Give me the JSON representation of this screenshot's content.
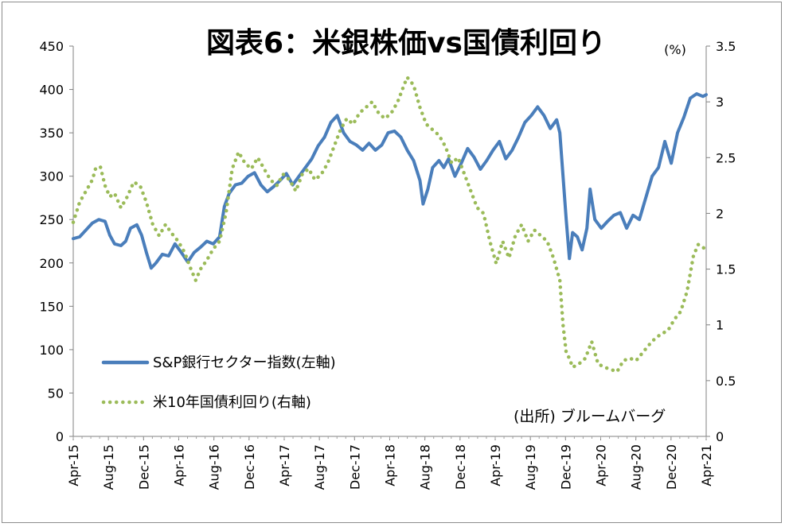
{
  "chart_data": {
    "type": "line",
    "title": "図表6：米銀株価vs国債利回り",
    "right_unit": "(%)",
    "source_note": "(出所) ブルームバーグ",
    "x_tick_labels": [
      "Apr-15",
      "Aug-15",
      "Dec-15",
      "Apr-16",
      "Aug-16",
      "Dec-16",
      "Apr-17",
      "Aug-17",
      "Dec-17",
      "Apr-18",
      "Aug-18",
      "Dec-18",
      "Apr-19",
      "Aug-19",
      "Dec-19",
      "Apr-20",
      "Aug-20",
      "Dec-20",
      "Apr-21"
    ],
    "y_left": {
      "min": 0,
      "max": 450,
      "ticks": [
        "0",
        "50",
        "100",
        "150",
        "200",
        "250",
        "300",
        "350",
        "400",
        "450"
      ]
    },
    "y_right": {
      "min": 0,
      "max": 3.5,
      "ticks": [
        "0",
        "0.5",
        "1",
        "1.5",
        "2",
        "2.5",
        "3",
        "3.5"
      ]
    },
    "series": [
      {
        "name": "S&P銀行セクター指数(左軸)",
        "axis": "left",
        "color": "#4a7ebb",
        "style": "solid",
        "points": [
          [
            0,
            228
          ],
          [
            0.4,
            230
          ],
          [
            0.8,
            238
          ],
          [
            1.2,
            246
          ],
          [
            1.6,
            250
          ],
          [
            2.0,
            248
          ],
          [
            2.3,
            232
          ],
          [
            2.6,
            222
          ],
          [
            3.0,
            220
          ],
          [
            3.3,
            225
          ],
          [
            3.6,
            240
          ],
          [
            4.0,
            244
          ],
          [
            4.3,
            232
          ],
          [
            4.6,
            212
          ],
          [
            4.9,
            194
          ],
          [
            5.2,
            200
          ],
          [
            5.6,
            210
          ],
          [
            6.0,
            208
          ],
          [
            6.4,
            222
          ],
          [
            6.8,
            212
          ],
          [
            7.2,
            201
          ],
          [
            7.6,
            212
          ],
          [
            8.0,
            218
          ],
          [
            8.4,
            225
          ],
          [
            8.8,
            222
          ],
          [
            9.2,
            230
          ],
          [
            9.5,
            265
          ],
          [
            9.8,
            280
          ],
          [
            10.2,
            290
          ],
          [
            10.6,
            292
          ],
          [
            11.0,
            300
          ],
          [
            11.4,
            304
          ],
          [
            11.8,
            290
          ],
          [
            12.2,
            282
          ],
          [
            12.6,
            288
          ],
          [
            13.0,
            295
          ],
          [
            13.4,
            303
          ],
          [
            13.8,
            290
          ],
          [
            14.2,
            300
          ],
          [
            14.6,
            310
          ],
          [
            15.0,
            320
          ],
          [
            15.4,
            335
          ],
          [
            15.8,
            345
          ],
          [
            16.2,
            362
          ],
          [
            16.6,
            370
          ],
          [
            17.0,
            350
          ],
          [
            17.4,
            340
          ],
          [
            17.8,
            336
          ],
          [
            18.2,
            330
          ],
          [
            18.6,
            338
          ],
          [
            19.0,
            330
          ],
          [
            19.4,
            336
          ],
          [
            19.8,
            350
          ],
          [
            20.2,
            352
          ],
          [
            20.6,
            345
          ],
          [
            21.0,
            330
          ],
          [
            21.4,
            318
          ],
          [
            21.8,
            295
          ],
          [
            22.0,
            268
          ],
          [
            22.3,
            285
          ],
          [
            22.6,
            310
          ],
          [
            23.0,
            318
          ],
          [
            23.3,
            310
          ],
          [
            23.6,
            320
          ],
          [
            24.0,
            300
          ],
          [
            24.4,
            315
          ],
          [
            24.8,
            332
          ],
          [
            25.2,
            322
          ],
          [
            25.6,
            308
          ],
          [
            26.0,
            318
          ],
          [
            26.4,
            330
          ],
          [
            26.8,
            340
          ],
          [
            27.2,
            320
          ],
          [
            27.6,
            330
          ],
          [
            28.0,
            345
          ],
          [
            28.4,
            362
          ],
          [
            28.8,
            370
          ],
          [
            29.2,
            380
          ],
          [
            29.6,
            370
          ],
          [
            30.0,
            355
          ],
          [
            30.4,
            365
          ],
          [
            30.6,
            350
          ],
          [
            30.8,
            300
          ],
          [
            31.0,
            250
          ],
          [
            31.2,
            205
          ],
          [
            31.4,
            235
          ],
          [
            31.7,
            230
          ],
          [
            32.0,
            215
          ],
          [
            32.3,
            240
          ],
          [
            32.5,
            285
          ],
          [
            32.8,
            250
          ],
          [
            33.2,
            240
          ],
          [
            33.6,
            248
          ],
          [
            34.0,
            255
          ],
          [
            34.4,
            258
          ],
          [
            34.8,
            240
          ],
          [
            35.2,
            255
          ],
          [
            35.6,
            250
          ],
          [
            36.0,
            275
          ],
          [
            36.4,
            300
          ],
          [
            36.8,
            310
          ],
          [
            37.2,
            340
          ],
          [
            37.6,
            315
          ],
          [
            38.0,
            350
          ],
          [
            38.4,
            368
          ],
          [
            38.8,
            390
          ],
          [
            39.2,
            395
          ],
          [
            39.6,
            392
          ],
          [
            39.8,
            394
          ]
        ]
      },
      {
        "name": "米10年国債利回り(右軸)",
        "axis": "right",
        "color": "#9bbb59",
        "style": "dotted",
        "points": [
          [
            0,
            1.92
          ],
          [
            0.4,
            2.1
          ],
          [
            0.8,
            2.2
          ],
          [
            1.2,
            2.3
          ],
          [
            1.4,
            2.4
          ],
          [
            1.7,
            2.42
          ],
          [
            2.0,
            2.25
          ],
          [
            2.3,
            2.15
          ],
          [
            2.6,
            2.18
          ],
          [
            3.0,
            2.05
          ],
          [
            3.4,
            2.15
          ],
          [
            3.8,
            2.28
          ],
          [
            4.2,
            2.25
          ],
          [
            4.6,
            2.1
          ],
          [
            5.0,
            1.9
          ],
          [
            5.4,
            1.8
          ],
          [
            5.8,
            1.9
          ],
          [
            6.2,
            1.82
          ],
          [
            6.6,
            1.75
          ],
          [
            7.0,
            1.65
          ],
          [
            7.4,
            1.5
          ],
          [
            7.7,
            1.4
          ],
          [
            8.0,
            1.5
          ],
          [
            8.4,
            1.58
          ],
          [
            8.8,
            1.68
          ],
          [
            9.2,
            1.75
          ],
          [
            9.6,
            2.0
          ],
          [
            10.0,
            2.4
          ],
          [
            10.4,
            2.55
          ],
          [
            10.8,
            2.45
          ],
          [
            11.2,
            2.4
          ],
          [
            11.6,
            2.5
          ],
          [
            12.0,
            2.4
          ],
          [
            12.4,
            2.3
          ],
          [
            12.8,
            2.25
          ],
          [
            13.2,
            2.35
          ],
          [
            13.6,
            2.3
          ],
          [
            14.0,
            2.2
          ],
          [
            14.4,
            2.35
          ],
          [
            14.8,
            2.4
          ],
          [
            15.2,
            2.3
          ],
          [
            15.6,
            2.35
          ],
          [
            16.0,
            2.45
          ],
          [
            16.4,
            2.6
          ],
          [
            16.8,
            2.75
          ],
          [
            17.2,
            2.85
          ],
          [
            17.6,
            2.8
          ],
          [
            18.0,
            2.9
          ],
          [
            18.4,
            2.95
          ],
          [
            18.8,
            3.0
          ],
          [
            19.2,
            2.9
          ],
          [
            19.6,
            2.85
          ],
          [
            20.0,
            2.9
          ],
          [
            20.4,
            3.0
          ],
          [
            20.8,
            3.15
          ],
          [
            21.0,
            3.22
          ],
          [
            21.4,
            3.15
          ],
          [
            21.8,
            2.95
          ],
          [
            22.2,
            2.8
          ],
          [
            22.6,
            2.75
          ],
          [
            23.0,
            2.7
          ],
          [
            23.4,
            2.6
          ],
          [
            23.8,
            2.45
          ],
          [
            24.2,
            2.5
          ],
          [
            24.6,
            2.35
          ],
          [
            25.0,
            2.2
          ],
          [
            25.4,
            2.05
          ],
          [
            25.8,
            2.0
          ],
          [
            26.2,
            1.75
          ],
          [
            26.6,
            1.55
          ],
          [
            27.0,
            1.75
          ],
          [
            27.4,
            1.6
          ],
          [
            27.8,
            1.8
          ],
          [
            28.2,
            1.9
          ],
          [
            28.6,
            1.75
          ],
          [
            29.0,
            1.85
          ],
          [
            29.4,
            1.8
          ],
          [
            29.8,
            1.75
          ],
          [
            30.2,
            1.6
          ],
          [
            30.6,
            1.4
          ],
          [
            30.8,
            1.0
          ],
          [
            31.0,
            0.75
          ],
          [
            31.2,
            0.7
          ],
          [
            31.4,
            0.62
          ],
          [
            31.8,
            0.65
          ],
          [
            32.2,
            0.7
          ],
          [
            32.6,
            0.85
          ],
          [
            33.0,
            0.65
          ],
          [
            33.4,
            0.62
          ],
          [
            33.8,
            0.6
          ],
          [
            34.2,
            0.58
          ],
          [
            34.6,
            0.68
          ],
          [
            35.0,
            0.7
          ],
          [
            35.4,
            0.68
          ],
          [
            35.8,
            0.75
          ],
          [
            36.2,
            0.82
          ],
          [
            36.6,
            0.88
          ],
          [
            37.0,
            0.92
          ],
          [
            37.4,
            0.95
          ],
          [
            37.8,
            1.05
          ],
          [
            38.2,
            1.12
          ],
          [
            38.6,
            1.3
          ],
          [
            39.0,
            1.62
          ],
          [
            39.3,
            1.72
          ],
          [
            39.6,
            1.7
          ],
          [
            39.8,
            1.65
          ]
        ]
      }
    ],
    "x_domain": [
      0,
      39.8
    ],
    "legend_position": "left-bottom inside plot"
  }
}
